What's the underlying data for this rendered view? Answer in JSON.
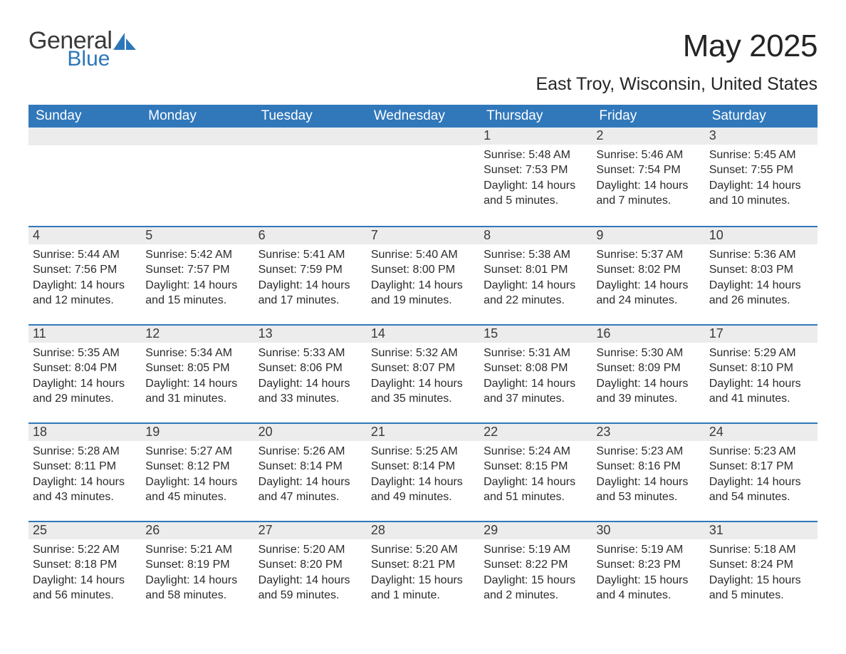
{
  "brand": {
    "name_primary": "General",
    "name_secondary": "Blue"
  },
  "colors": {
    "header_bg": "#3178bb",
    "header_text": "#ffffff",
    "daynum_bg": "#ececec",
    "row_border": "#3178bb",
    "text": "#2b2b2b",
    "logo_blue": "#2c77ba"
  },
  "fonts": {
    "base": "Arial",
    "title_size_pt": 33,
    "location_size_pt": 19,
    "header_size_pt": 14,
    "daynum_size_pt": 14,
    "body_size_pt": 12
  },
  "title": "May 2025",
  "location": "East Troy, Wisconsin, United States",
  "weekdays": [
    "Sunday",
    "Monday",
    "Tuesday",
    "Wednesday",
    "Thursday",
    "Friday",
    "Saturday"
  ],
  "calendar": {
    "type": "table",
    "columns": 7,
    "rows": 5,
    "labels": {
      "sunrise": "Sunrise:",
      "sunset": "Sunset:",
      "daylight": "Daylight:"
    },
    "weeks": [
      [
        null,
        null,
        null,
        null,
        {
          "d": "1",
          "sunrise": "5:48 AM",
          "sunset": "7:53 PM",
          "daylight": "14 hours and 5 minutes."
        },
        {
          "d": "2",
          "sunrise": "5:46 AM",
          "sunset": "7:54 PM",
          "daylight": "14 hours and 7 minutes."
        },
        {
          "d": "3",
          "sunrise": "5:45 AM",
          "sunset": "7:55 PM",
          "daylight": "14 hours and 10 minutes."
        }
      ],
      [
        {
          "d": "4",
          "sunrise": "5:44 AM",
          "sunset": "7:56 PM",
          "daylight": "14 hours and 12 minutes."
        },
        {
          "d": "5",
          "sunrise": "5:42 AM",
          "sunset": "7:57 PM",
          "daylight": "14 hours and 15 minutes."
        },
        {
          "d": "6",
          "sunrise": "5:41 AM",
          "sunset": "7:59 PM",
          "daylight": "14 hours and 17 minutes."
        },
        {
          "d": "7",
          "sunrise": "5:40 AM",
          "sunset": "8:00 PM",
          "daylight": "14 hours and 19 minutes."
        },
        {
          "d": "8",
          "sunrise": "5:38 AM",
          "sunset": "8:01 PM",
          "daylight": "14 hours and 22 minutes."
        },
        {
          "d": "9",
          "sunrise": "5:37 AM",
          "sunset": "8:02 PM",
          "daylight": "14 hours and 24 minutes."
        },
        {
          "d": "10",
          "sunrise": "5:36 AM",
          "sunset": "8:03 PM",
          "daylight": "14 hours and 26 minutes."
        }
      ],
      [
        {
          "d": "11",
          "sunrise": "5:35 AM",
          "sunset": "8:04 PM",
          "daylight": "14 hours and 29 minutes."
        },
        {
          "d": "12",
          "sunrise": "5:34 AM",
          "sunset": "8:05 PM",
          "daylight": "14 hours and 31 minutes."
        },
        {
          "d": "13",
          "sunrise": "5:33 AM",
          "sunset": "8:06 PM",
          "daylight": "14 hours and 33 minutes."
        },
        {
          "d": "14",
          "sunrise": "5:32 AM",
          "sunset": "8:07 PM",
          "daylight": "14 hours and 35 minutes."
        },
        {
          "d": "15",
          "sunrise": "5:31 AM",
          "sunset": "8:08 PM",
          "daylight": "14 hours and 37 minutes."
        },
        {
          "d": "16",
          "sunrise": "5:30 AM",
          "sunset": "8:09 PM",
          "daylight": "14 hours and 39 minutes."
        },
        {
          "d": "17",
          "sunrise": "5:29 AM",
          "sunset": "8:10 PM",
          "daylight": "14 hours and 41 minutes."
        }
      ],
      [
        {
          "d": "18",
          "sunrise": "5:28 AM",
          "sunset": "8:11 PM",
          "daylight": "14 hours and 43 minutes."
        },
        {
          "d": "19",
          "sunrise": "5:27 AM",
          "sunset": "8:12 PM",
          "daylight": "14 hours and 45 minutes."
        },
        {
          "d": "20",
          "sunrise": "5:26 AM",
          "sunset": "8:14 PM",
          "daylight": "14 hours and 47 minutes."
        },
        {
          "d": "21",
          "sunrise": "5:25 AM",
          "sunset": "8:14 PM",
          "daylight": "14 hours and 49 minutes."
        },
        {
          "d": "22",
          "sunrise": "5:24 AM",
          "sunset": "8:15 PM",
          "daylight": "14 hours and 51 minutes."
        },
        {
          "d": "23",
          "sunrise": "5:23 AM",
          "sunset": "8:16 PM",
          "daylight": "14 hours and 53 minutes."
        },
        {
          "d": "24",
          "sunrise": "5:23 AM",
          "sunset": "8:17 PM",
          "daylight": "14 hours and 54 minutes."
        }
      ],
      [
        {
          "d": "25",
          "sunrise": "5:22 AM",
          "sunset": "8:18 PM",
          "daylight": "14 hours and 56 minutes."
        },
        {
          "d": "26",
          "sunrise": "5:21 AM",
          "sunset": "8:19 PM",
          "daylight": "14 hours and 58 minutes."
        },
        {
          "d": "27",
          "sunrise": "5:20 AM",
          "sunset": "8:20 PM",
          "daylight": "14 hours and 59 minutes."
        },
        {
          "d": "28",
          "sunrise": "5:20 AM",
          "sunset": "8:21 PM",
          "daylight": "15 hours and 1 minute."
        },
        {
          "d": "29",
          "sunrise": "5:19 AM",
          "sunset": "8:22 PM",
          "daylight": "15 hours and 2 minutes."
        },
        {
          "d": "30",
          "sunrise": "5:19 AM",
          "sunset": "8:23 PM",
          "daylight": "15 hours and 4 minutes."
        },
        {
          "d": "31",
          "sunrise": "5:18 AM",
          "sunset": "8:24 PM",
          "daylight": "15 hours and 5 minutes."
        }
      ]
    ]
  }
}
